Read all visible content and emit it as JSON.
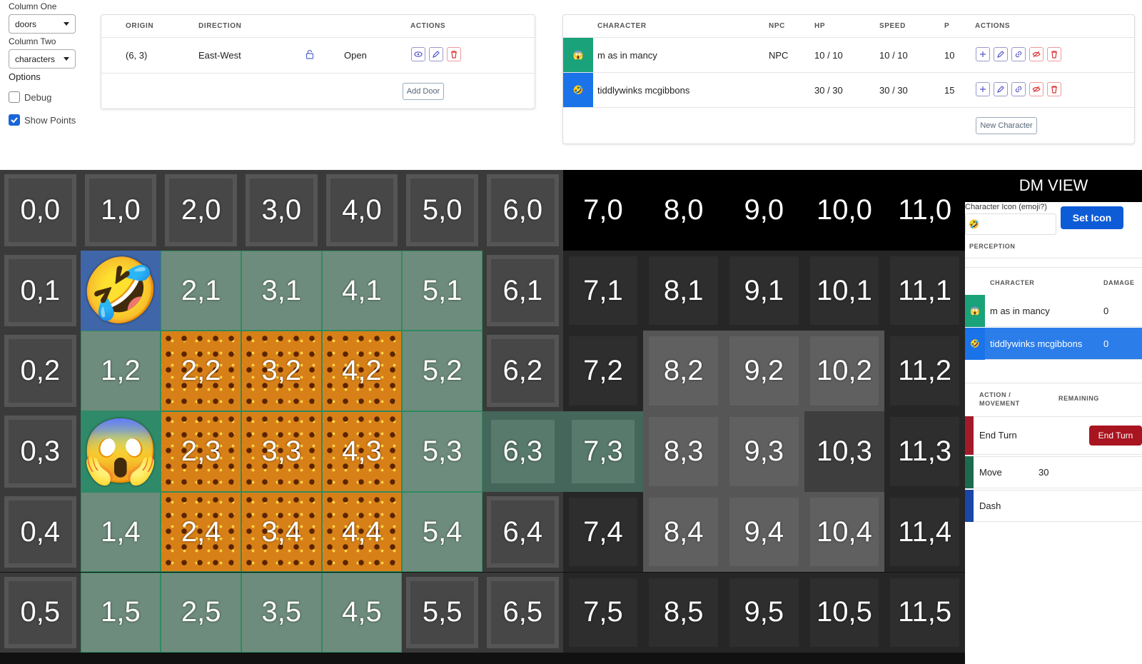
{
  "controls": {
    "column_one_label": "Column One",
    "column_one_value": "doors",
    "column_two_label": "Column Two",
    "column_two_value": "characters",
    "options_label": "Options",
    "debug_label": "Debug",
    "debug_checked": false,
    "show_points_label": "Show Points",
    "show_points_checked": true
  },
  "doors_table": {
    "headers": [
      "ORIGIN",
      "DIRECTION",
      "ACTIONS"
    ],
    "rows": [
      {
        "origin": "(6, 3)",
        "direction": "East-West",
        "state": "Open"
      }
    ],
    "add_button": "Add Door"
  },
  "characters_table": {
    "headers": [
      "CHARACTER",
      "NPC",
      "HP",
      "SPEED",
      "P",
      "ACTIONS"
    ],
    "rows": [
      {
        "icon": "😱",
        "name": "m as in mancy",
        "npc": "NPC",
        "hp": "10 / 10",
        "speed": "10 / 10",
        "p": 10
      },
      {
        "icon": "🤣",
        "name": "tiddlywinks mcgibbons",
        "hp": "30 / 30",
        "speed": "30 / 30",
        "p": 15
      }
    ],
    "new_button": "New Character"
  },
  "grid": {
    "rows": [
      [
        "0,0",
        "1,0",
        "2,0",
        "3,0",
        "4,0",
        "5,0",
        "6,0",
        "7,0",
        "8,0",
        "9,0",
        "10,0",
        "11,0"
      ],
      [
        "0,1",
        "🤣",
        "2,1",
        "3,1",
        "4,1",
        "5,1",
        "6,1",
        "7,1",
        "8,1",
        "9,1",
        "10,1",
        "11,1"
      ],
      [
        "0,2",
        "1,2",
        "2,2",
        "3,2",
        "4,2",
        "5,2",
        "6,2",
        "7,2",
        "8,2",
        "9,2",
        "10,2",
        "11,2"
      ],
      [
        "0,3",
        "😱",
        "2,3",
        "3,3",
        "4,3",
        "5,3",
        "6,3",
        "7,3",
        "8,3",
        "9,3",
        "10,3",
        "11,3"
      ],
      [
        "0,4",
        "1,4",
        "2,4",
        "3,4",
        "4,4",
        "5,4",
        "6,4",
        "7,4",
        "8,4",
        "9,4",
        "10,4",
        "11,4"
      ],
      [
        "0,5",
        "1,5",
        "2,5",
        "3,5",
        "4,5",
        "5,5",
        "6,5",
        "7,5",
        "8,5",
        "9,5",
        "10,5",
        "11,5"
      ]
    ]
  },
  "dm_panel": {
    "title": "DM VIEW",
    "icon_label": "Character Icon (emoji?)",
    "icon_value": "🤣",
    "set_button": "Set Icon",
    "perception_label": "PERCEPTION",
    "damage_headers": [
      "CHARACTER",
      "DAMAGE"
    ],
    "damage_rows": [
      {
        "icon": "😱",
        "name": "m as in mancy",
        "damage": 0
      },
      {
        "icon": "🤣",
        "name": "tiddlywinks mcgibbons",
        "damage": 0
      }
    ],
    "action_headers": [
      "ACTION / MOVEMENT",
      "REMAINING"
    ],
    "actions": [
      {
        "name": "End Turn",
        "button": "End Turn"
      },
      {
        "name": "Move",
        "remaining": 30
      },
      {
        "name": "Dash"
      }
    ]
  }
}
